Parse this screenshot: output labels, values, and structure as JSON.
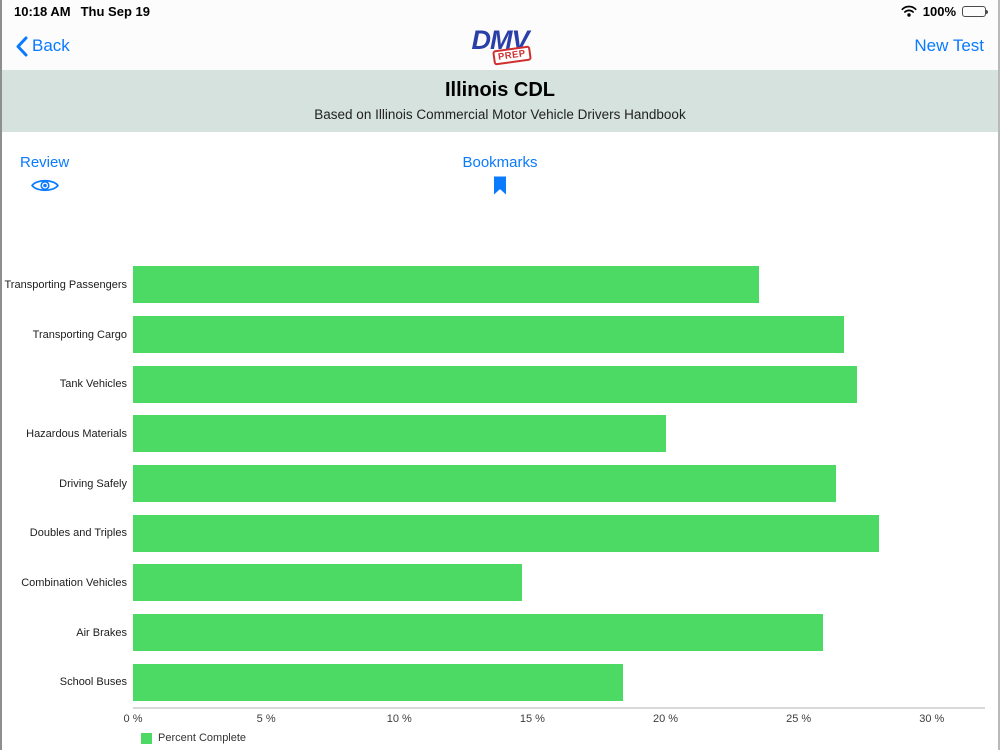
{
  "status_bar": {
    "time": "10:18 AM",
    "date": "Thu Sep 19",
    "battery_percent": "100%"
  },
  "nav": {
    "back_label": "Back",
    "new_test_label": "New Test",
    "logo": {
      "main": "DMV",
      "stamp": "PREP"
    }
  },
  "header": {
    "title": "Illinois CDL",
    "subtitle": "Based on Illinois Commercial Motor Vehicle Drivers Handbook"
  },
  "toolbar": {
    "review_label": "Review",
    "bookmarks_label": "Bookmarks"
  },
  "chart_data": {
    "type": "bar",
    "orientation": "horizontal",
    "title": "",
    "xlabel": "Percent Complete",
    "categories": [
      "Transporting Passengers",
      "Transporting Cargo",
      "Tank Vehicles",
      "Hazardous Materials",
      "Driving Safely",
      "Doubles and Triples",
      "Combination Vehicles",
      "Air Brakes",
      "School Buses"
    ],
    "values": [
      23.5,
      26.7,
      27.2,
      20.0,
      26.4,
      28.0,
      14.6,
      25.9,
      18.4
    ],
    "xticks": [
      0,
      5,
      10,
      15,
      20,
      25,
      30
    ],
    "xtick_labels": [
      "0 %",
      "5 %",
      "10 %",
      "15 %",
      "20 %",
      "25 %",
      "30 %"
    ],
    "xlim": [
      0,
      32
    ],
    "grid": false,
    "legend_label": "Percent Complete",
    "legend_position": "bottom-left",
    "bar_color": "#4cd964"
  },
  "colors": {
    "accent_blue": "#0a7aff",
    "bar_green": "#4cd964",
    "band_bg": "#d5e2de",
    "stamp_red": "#cf2f2f",
    "logo_blue": "#2b3fa8"
  }
}
